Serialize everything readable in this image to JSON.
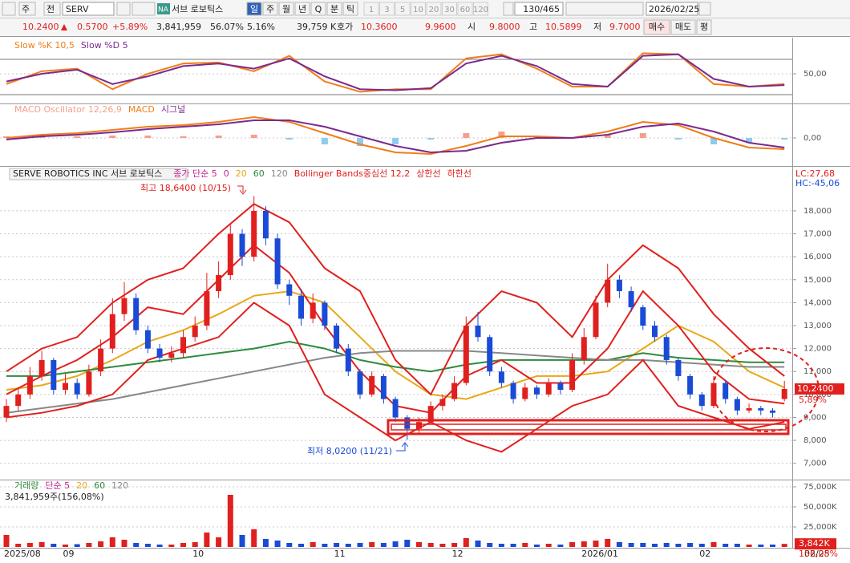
{
  "toolbar": {
    "market": "주",
    "scope": "전",
    "symbol": "SERV",
    "badge": "NA",
    "name": "서브 로보틱스",
    "periods": [
      "일",
      "주",
      "월",
      "년",
      "Q",
      "분",
      "틱"
    ],
    "intervals": [
      "1",
      "3",
      "5",
      "10",
      "20",
      "30",
      "60",
      "120"
    ],
    "count": "130/465",
    "date": "2026/02/25"
  },
  "quote": {
    "price": "10.2400",
    "change": "0.5700",
    "change_pct": "+5.89%",
    "volume": "3,841,959",
    "ratio1": "56.07%",
    "ratio2": "5.16%",
    "amount": "39,759 K",
    "bid_label": "호가",
    "ask": "10.3600",
    "bid": "9.9600",
    "open_label": "시",
    "open": "9.8000",
    "high_label": "고",
    "high": "10.5899",
    "low_label": "저",
    "low": "9.7000",
    "buttons": [
      "매수",
      "매도",
      "평"
    ]
  },
  "chart_data": [
    {
      "type": "line",
      "x": [
        0,
        3,
        6,
        9,
        12,
        15,
        18,
        21,
        24,
        27,
        30,
        33,
        36,
        39,
        42,
        45,
        48,
        51,
        54,
        57,
        60,
        63,
        66
      ],
      "ylim": [
        0,
        100
      ],
      "yticks": [
        {
          "value": 50,
          "label": "50,00"
        }
      ],
      "series": [
        {
          "name": "Slow %K 10,5",
          "color": "#f07d1a",
          "values": [
            30,
            55,
            60,
            20,
            50,
            70,
            72,
            55,
            85,
            35,
            15,
            20,
            20,
            80,
            88,
            60,
            25,
            25,
            90,
            88,
            30,
            25,
            30
          ]
        },
        {
          "name": "Slow %D 5",
          "color": "#7b2a8e",
          "values": [
            35,
            50,
            58,
            30,
            45,
            65,
            70,
            60,
            80,
            45,
            20,
            18,
            22,
            70,
            85,
            65,
            30,
            25,
            85,
            88,
            40,
            25,
            28
          ]
        }
      ]
    },
    {
      "type": "combo",
      "x": [
        0,
        3,
        6,
        9,
        12,
        15,
        18,
        21,
        24,
        27,
        30,
        33,
        36,
        39,
        42,
        45,
        48,
        51,
        54,
        57,
        60,
        63,
        66
      ],
      "ylim": [
        -1.5,
        1.5
      ],
      "yticks": [
        {
          "value": 0,
          "label": "0,00"
        }
      ],
      "series": [
        {
          "name": "MACD Oscillator 12,26,9",
          "kind": "bar",
          "color": "#f4a08a",
          "negative_color": "#8ecbee",
          "values": [
            0.1,
            0.1,
            0.1,
            0.15,
            0.15,
            0.1,
            0.15,
            0.2,
            -0.1,
            -0.4,
            -0.5,
            -0.4,
            -0.1,
            0.3,
            0.4,
            0.1,
            0,
            0.2,
            0.3,
            -0.1,
            -0.4,
            -0.3,
            -0.1
          ]
        },
        {
          "name": "MACD",
          "color": "#f07d1a",
          "values": [
            0,
            0.2,
            0.3,
            0.5,
            0.7,
            0.8,
            1,
            1.3,
            1,
            0.3,
            -0.4,
            -0.9,
            -1,
            -0.5,
            0.1,
            0.1,
            0,
            0.4,
            1,
            0.8,
            0,
            -0.6,
            -0.7
          ]
        },
        {
          "name": "시그널",
          "color": "#7b2a8e",
          "values": [
            -0.1,
            0.1,
            0.2,
            0.35,
            0.55,
            0.7,
            0.85,
            1.1,
            1.1,
            0.7,
            0.1,
            -0.5,
            -0.9,
            -0.8,
            -0.3,
            0,
            0,
            0.2,
            0.7,
            0.9,
            0.4,
            -0.3,
            -0.6
          ]
        }
      ]
    },
    {
      "type": "candlestick",
      "header": "SERVE ROBOTICS INC  서브 로보틱스",
      "legend_prefix": [
        "종가 단순 5",
        "0"
      ],
      "up_color": "#e0201e",
      "down_color": "#1a4bd6",
      "categories": [
        "2025/08",
        null,
        null,
        null,
        null,
        "09",
        null,
        null,
        null,
        null,
        null,
        null,
        null,
        null,
        null,
        null,
        "10",
        null,
        null,
        null,
        null,
        null,
        null,
        null,
        null,
        null,
        null,
        null,
        "11",
        null,
        null,
        null,
        null,
        null,
        null,
        null,
        null,
        null,
        "12",
        null,
        null,
        null,
        null,
        null,
        null,
        null,
        null,
        null,
        null,
        "2026/01",
        null,
        null,
        null,
        null,
        null,
        null,
        null,
        null,
        null,
        "02",
        null,
        null,
        null,
        null,
        null,
        null,
        null
      ],
      "ohlc": [
        [
          9,
          9.8,
          8.8,
          9.5
        ],
        [
          9.5,
          10.3,
          9.3,
          10
        ],
        [
          10,
          11.2,
          9.8,
          10.8
        ],
        [
          10.8,
          11.9,
          10.6,
          11.5
        ],
        [
          11.5,
          11.6,
          10,
          10.2
        ],
        [
          10.2,
          10.9,
          10,
          10.5
        ],
        [
          10.5,
          10.7,
          9.8,
          10
        ],
        [
          10,
          11.3,
          9.9,
          11
        ],
        [
          11,
          12.4,
          10.8,
          12
        ],
        [
          12,
          14.2,
          11.8,
          13.5
        ],
        [
          13.5,
          14.9,
          13.2,
          14.2
        ],
        [
          14.2,
          14.4,
          12.6,
          12.8
        ],
        [
          12.8,
          13,
          11.8,
          12
        ],
        [
          12,
          12.2,
          11.4,
          11.6
        ],
        [
          11.6,
          12.1,
          11.4,
          11.8
        ],
        [
          11.8,
          12.8,
          11.6,
          12.5
        ],
        [
          12.5,
          13.4,
          12.3,
          13
        ],
        [
          13,
          15.3,
          12.8,
          14.5
        ],
        [
          14.5,
          15.8,
          14.2,
          15.2
        ],
        [
          15.2,
          17.4,
          15,
          17
        ],
        [
          17,
          17.2,
          15.6,
          16
        ],
        [
          16,
          18.64,
          15.8,
          18
        ],
        [
          18,
          18.2,
          16.5,
          16.8
        ],
        [
          16.8,
          17,
          14.6,
          14.8
        ],
        [
          14.8,
          15,
          13.9,
          14.3
        ],
        [
          14.3,
          14.6,
          13,
          13.3
        ],
        [
          13.3,
          14.4,
          13.1,
          14
        ],
        [
          14,
          14.1,
          12.8,
          13
        ],
        [
          13,
          13.1,
          11.8,
          12
        ],
        [
          12,
          12.2,
          10.8,
          11
        ],
        [
          11,
          11.1,
          9.8,
          10
        ],
        [
          10,
          11,
          9.9,
          10.8
        ],
        [
          10.8,
          10.9,
          9.6,
          9.8
        ],
        [
          9.8,
          9.9,
          8.8,
          9
        ],
        [
          9,
          9.1,
          8.02,
          8.5
        ],
        [
          8.5,
          9,
          8.3,
          8.8
        ],
        [
          8.8,
          9.7,
          8.7,
          9.5
        ],
        [
          9.5,
          10,
          9.3,
          9.8
        ],
        [
          9.8,
          10.8,
          9.7,
          10.5
        ],
        [
          10.5,
          13.4,
          10.4,
          13
        ],
        [
          13,
          13.6,
          12.3,
          12.5
        ],
        [
          12.5,
          12.6,
          10.8,
          11
        ],
        [
          11,
          11.2,
          10.3,
          10.5
        ],
        [
          10.5,
          10.6,
          9.6,
          9.8
        ],
        [
          9.8,
          10.5,
          9.7,
          10.3
        ],
        [
          10.3,
          10.4,
          9.8,
          10
        ],
        [
          10,
          10.7,
          9.9,
          10.5
        ],
        [
          10.5,
          10.6,
          10,
          10.2
        ],
        [
          10.2,
          11.8,
          10.1,
          11.5
        ],
        [
          11.5,
          12.9,
          11.3,
          12.5
        ],
        [
          12.5,
          14.3,
          12.4,
          14
        ],
        [
          14,
          15.7,
          13.8,
          15
        ],
        [
          15,
          15.2,
          14.2,
          14.5
        ],
        [
          14.5,
          14.7,
          13.6,
          13.8
        ],
        [
          13.8,
          13.9,
          12.8,
          13
        ],
        [
          13,
          13.2,
          12.3,
          12.5
        ],
        [
          12.5,
          12.6,
          11.3,
          11.5
        ],
        [
          11.5,
          11.6,
          10.6,
          10.8
        ],
        [
          10.8,
          10.9,
          9.8,
          10
        ],
        [
          10,
          10.1,
          9.3,
          9.5
        ],
        [
          9.5,
          10.8,
          9.4,
          10.5
        ],
        [
          10.5,
          10.6,
          9.6,
          9.8
        ],
        [
          9.8,
          9.9,
          9.1,
          9.3
        ],
        [
          9.3,
          9.6,
          9.2,
          9.4
        ],
        [
          9.4,
          9.5,
          9.1,
          9.3
        ],
        [
          9.3,
          9.4,
          9,
          9.2
        ],
        [
          9.8,
          10.5899,
          9.7,
          10.24
        ]
      ],
      "x": [
        0,
        3,
        6,
        9,
        12,
        15,
        18,
        21,
        24,
        27,
        30,
        33,
        36,
        39,
        42,
        45,
        48,
        51,
        54,
        57,
        60,
        63,
        66
      ],
      "series": [
        {
          "name": "20",
          "color": "#e8a818",
          "values": [
            10.2,
            10.4,
            10.8,
            11.5,
            12.3,
            12.8,
            13.5,
            14.3,
            14.5,
            14,
            12.5,
            11,
            10,
            9.8,
            10.3,
            10.8,
            10.8,
            11,
            12,
            13,
            12.3,
            11,
            10.3
          ]
        },
        {
          "name": "60",
          "color": "#2e8b3e",
          "values": [
            10.8,
            10.8,
            11,
            11.2,
            11.4,
            11.6,
            11.8,
            12,
            12.3,
            12,
            11.5,
            11.2,
            11,
            11.3,
            11.5,
            11.5,
            11.5,
            11.5,
            11.8,
            11.6,
            11.5,
            11.4,
            11.4
          ]
        },
        {
          "name": "120",
          "color": "#888888",
          "values": [
            9.2,
            9.4,
            9.6,
            9.8,
            10.1,
            10.4,
            10.7,
            11,
            11.3,
            11.6,
            11.8,
            11.9,
            11.9,
            11.9,
            11.8,
            11.7,
            11.6,
            11.5,
            11.5,
            11.4,
            11.3,
            11.2,
            11.2
          ]
        },
        {
          "name": "Bollinger Bands중심선 12,2",
          "color": "#e0201e",
          "values": [
            10,
            10.8,
            11.5,
            12.5,
            13.8,
            13.5,
            15,
            16.5,
            15.3,
            13,
            11,
            9.5,
            9.2,
            10.8,
            11.5,
            10.5,
            10.5,
            12,
            14.5,
            13,
            11,
            9.8,
            9.6
          ]
        },
        {
          "name": "상한선",
          "color": "#e0201e",
          "values": [
            11,
            12,
            12.5,
            14,
            15,
            15.5,
            17,
            18.3,
            17.5,
            15.5,
            14.5,
            11.5,
            10,
            13,
            14.5,
            14,
            12.5,
            15,
            16.5,
            15.5,
            13.5,
            12,
            10.8
          ]
        },
        {
          "name": "하한선",
          "color": "#e0201e",
          "values": [
            9,
            9.2,
            9.5,
            10,
            11.5,
            12,
            12.5,
            14,
            13,
            10,
            9,
            8,
            8.8,
            8,
            7.5,
            8.5,
            9.5,
            10,
            11.5,
            9.5,
            9,
            8.5,
            8.8
          ]
        }
      ],
      "ylim": [
        6.36,
        19.22
      ],
      "yticks": [
        {
          "value": 7,
          "label": "7,000"
        },
        {
          "value": 8,
          "label": "8,000"
        },
        {
          "value": 9,
          "label": "9,000"
        },
        {
          "value": 10,
          "label": "10,000"
        },
        {
          "value": 11,
          "label": "11,000"
        },
        {
          "value": 12,
          "label": "12,000"
        },
        {
          "value": 13,
          "label": "13,000"
        },
        {
          "value": 14,
          "label": "14,000"
        },
        {
          "value": 15,
          "label": "15,000"
        },
        {
          "value": 16,
          "label": "16,000"
        },
        {
          "value": 17,
          "label": "17,000"
        },
        {
          "value": 18,
          "label": "18,000"
        }
      ],
      "high_label": "최고 18,6400 (10/15)",
      "low_label": "최저 8,0200 (11/21)",
      "lc": "LC:27,68",
      "hc": "HC:-45,06",
      "last_price": {
        "value": 10.24,
        "label": "10,2400"
      },
      "last_change": "5,89%",
      "last_date": "02/25"
    },
    {
      "type": "bar",
      "legend_extra": [
        "단순 5",
        "20",
        "60",
        "120"
      ],
      "info": "3,841,959주(156,08%)",
      "ylim": [
        0,
        83000
      ],
      "yticks": [
        {
          "value": 75000,
          "label": "75,000K"
        },
        {
          "value": 50000,
          "label": "50,000K"
        },
        {
          "value": 25000,
          "label": "25,000K"
        }
      ],
      "series": [
        {
          "name": "거래량",
          "values": [
            15000,
            4000,
            5000,
            6000,
            4000,
            3000,
            3500,
            5000,
            7000,
            12000,
            9000,
            5000,
            4000,
            3000,
            3000,
            5000,
            6000,
            18000,
            12000,
            65000,
            15000,
            22000,
            10000,
            8000,
            5000,
            4000,
            6000,
            4000,
            5000,
            4000,
            5000,
            6000,
            5000,
            7000,
            9000,
            6000,
            5000,
            4000,
            5000,
            11000,
            8000,
            5000,
            4000,
            4000,
            5000,
            3000,
            4000,
            3000,
            6000,
            7000,
            8000,
            10000,
            6000,
            5000,
            5000,
            4000,
            5000,
            4000,
            5000,
            4000,
            6000,
            4000,
            4000,
            3000,
            3000,
            3000,
            3842
          ]
        }
      ],
      "last_label": {
        "value": 3842,
        "label": "3,842K"
      },
      "last_ratio": "156,08%"
    }
  ]
}
